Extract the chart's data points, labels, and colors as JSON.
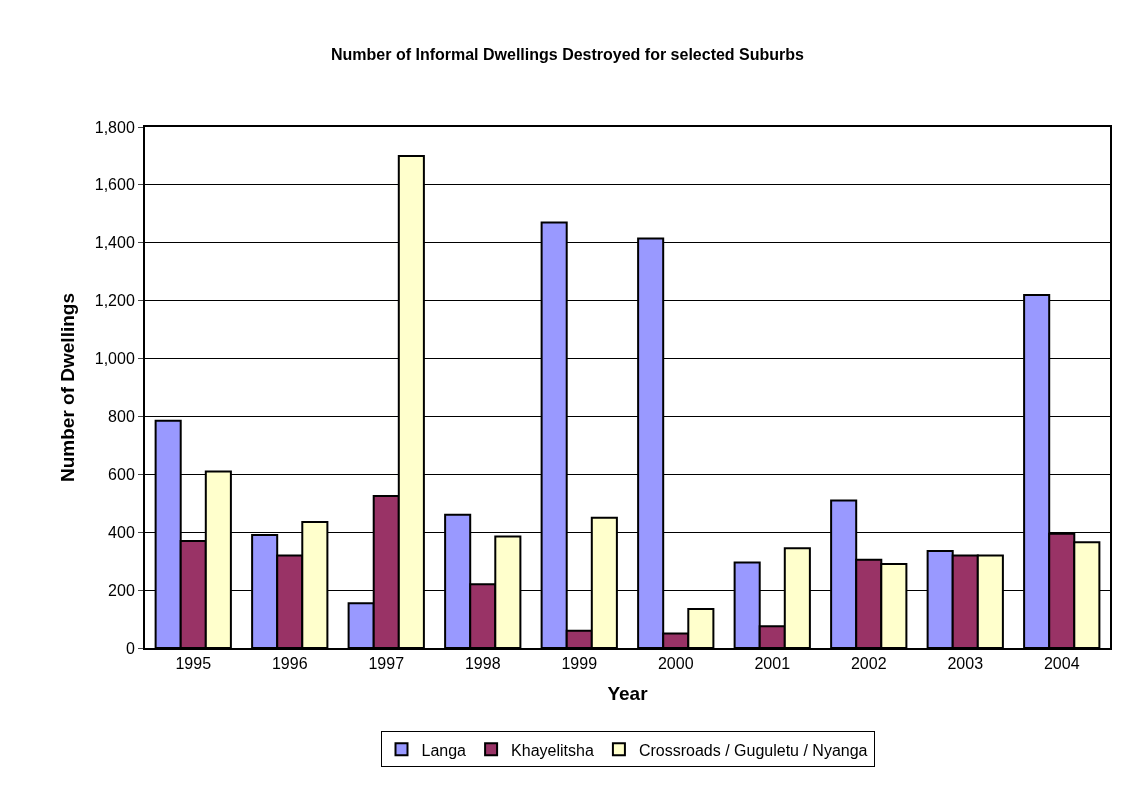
{
  "chart_data": {
    "type": "bar",
    "title": "Number of Informal Dwellings Destroyed for selected Suburbs",
    "xlabel": "Year",
    "ylabel": "Number of Dwellings",
    "categories": [
      "1995",
      "1996",
      "1997",
      "1998",
      "1999",
      "2000",
      "2001",
      "2002",
      "2003",
      "2004"
    ],
    "series": [
      {
        "name": "Langa",
        "color": "#9999ff",
        "values": [
          785,
          390,
          155,
          460,
          1470,
          1415,
          295,
          510,
          335,
          1220
        ]
      },
      {
        "name": "Khayelitsha",
        "color": "#993366",
        "values": [
          370,
          320,
          525,
          220,
          60,
          50,
          75,
          305,
          320,
          395
        ]
      },
      {
        "name": "Crossroads / Guguletu / Nyanga",
        "color": "#ffffcc",
        "values": [
          610,
          435,
          1700,
          385,
          450,
          135,
          345,
          290,
          320,
          365
        ]
      }
    ],
    "ylim": [
      0,
      1800
    ],
    "yticks": [
      {
        "value": 0,
        "label": "0"
      },
      {
        "value": 200,
        "label": "200"
      },
      {
        "value": 400,
        "label": "400"
      },
      {
        "value": 600,
        "label": "600"
      },
      {
        "value": 800,
        "label": "800"
      },
      {
        "value": 1000,
        "label": "1,000"
      },
      {
        "value": 1200,
        "label": "1,200"
      },
      {
        "value": 1400,
        "label": "1,400"
      },
      {
        "value": 1600,
        "label": "1,600"
      },
      {
        "value": 1800,
        "label": "1,800"
      }
    ],
    "grid": "y",
    "legend": "bottom"
  }
}
